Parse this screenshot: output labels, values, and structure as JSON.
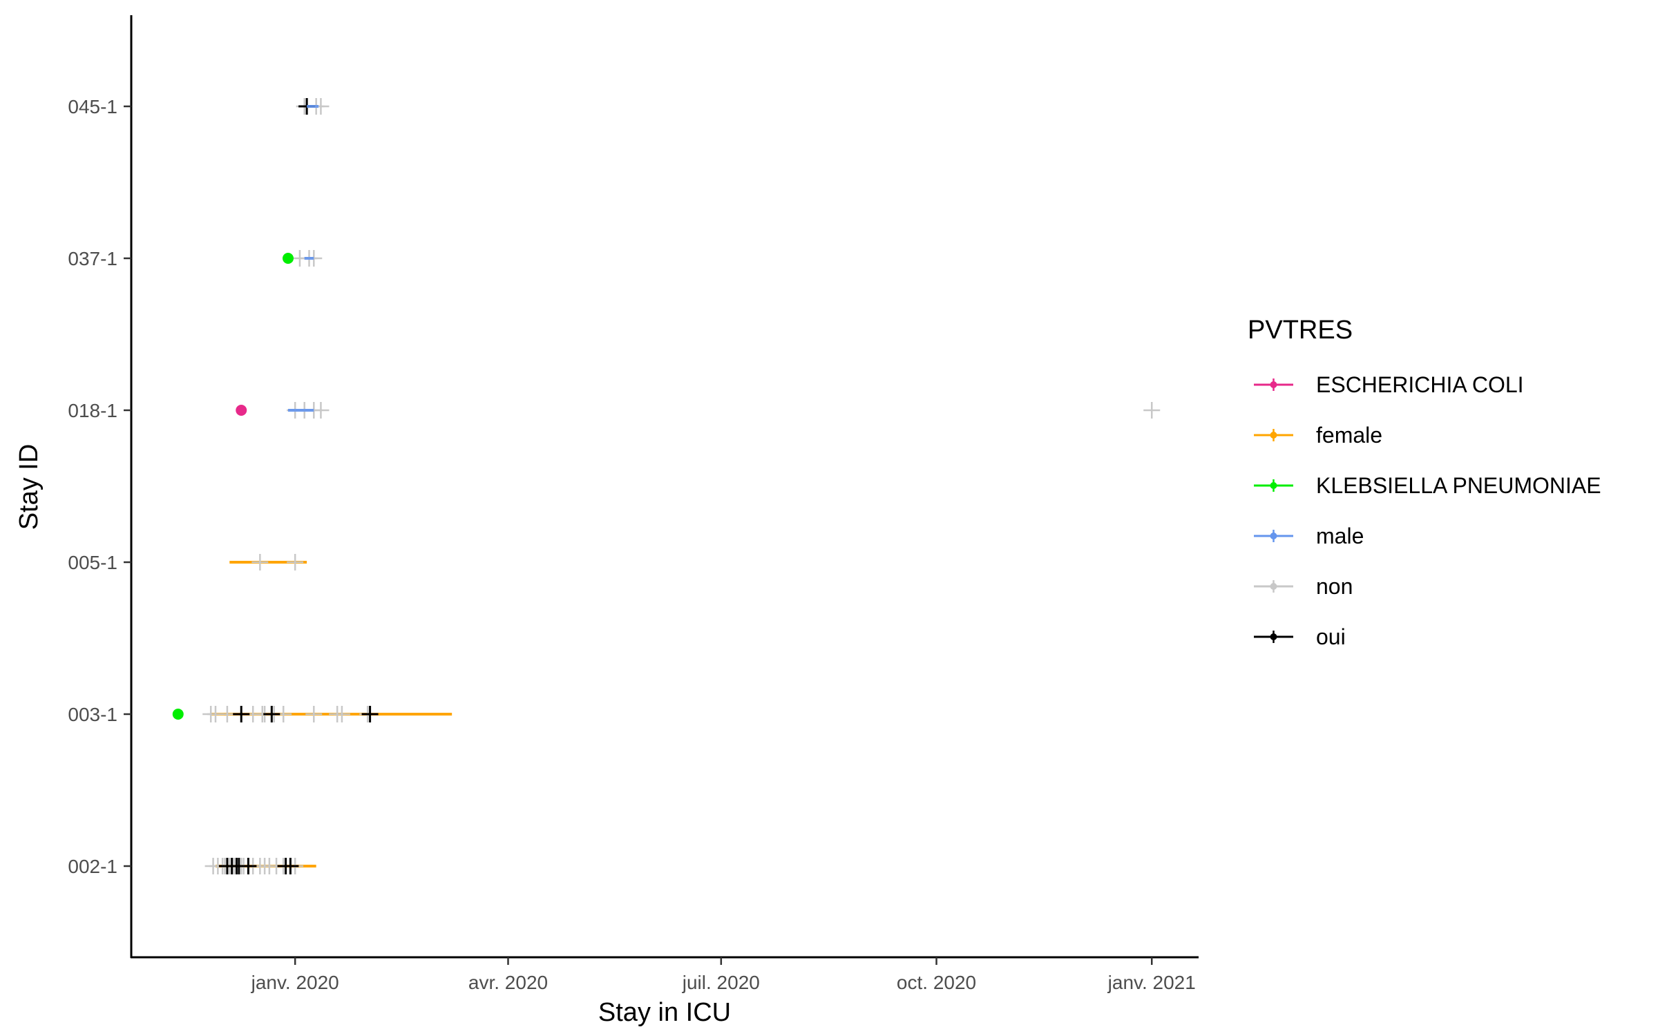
{
  "chart_data": {
    "type": "scatter",
    "xlabel": "Stay in ICU",
    "ylabel": "Stay ID",
    "categories": [
      "002-1",
      "003-1",
      "005-1",
      "018-1",
      "037-1",
      "045-1"
    ],
    "x_ticks": [
      {
        "date": "2020-01-01",
        "label": "janv. 2020"
      },
      {
        "date": "2020-04-01",
        "label": "avr. 2020"
      },
      {
        "date": "2020-07-01",
        "label": "juil. 2020"
      },
      {
        "date": "2020-10-01",
        "label": "oct. 2020"
      },
      {
        "date": "2021-01-01",
        "label": "janv. 2021"
      }
    ],
    "xlim": [
      "2019-10-23",
      "2021-01-21"
    ],
    "grid": false,
    "legend": {
      "title": "PVTRES",
      "position": "right",
      "entries": [
        {
          "label": "ESCHERICHIA COLI",
          "color": "#E7298A"
        },
        {
          "label": "female",
          "color": "#FFA500"
        },
        {
          "label": "KLEBSIELLA PNEUMONIAE",
          "color": "#00EE00"
        },
        {
          "label": "male",
          "color": "#6495ED"
        },
        {
          "label": "non",
          "color": "#C8C8C8"
        },
        {
          "label": "oui",
          "color": "#000000"
        }
      ]
    },
    "stays": [
      {
        "id": "002-1",
        "group": "female",
        "start": "2019-11-28",
        "end": "2020-01-10"
      },
      {
        "id": "003-1",
        "group": "female",
        "start": "2019-11-26",
        "end": "2020-03-08"
      },
      {
        "id": "005-1",
        "group": "female",
        "start": "2019-12-04",
        "end": "2020-01-06"
      },
      {
        "id": "018-1",
        "group": "male",
        "start": "2019-12-29",
        "end": "2020-01-09"
      },
      {
        "id": "037-1",
        "group": "male",
        "start": "2020-01-05",
        "end": "2020-01-09"
      },
      {
        "id": "045-1",
        "group": "male",
        "start": "2020-01-06",
        "end": "2020-01-11"
      }
    ],
    "points": [
      {
        "id": "003-1",
        "group": "KLEBSIELLA PNEUMONIAE",
        "date": "2019-11-12"
      },
      {
        "id": "018-1",
        "group": "ESCHERICHIA COLI",
        "date": "2019-12-09"
      },
      {
        "id": "037-1",
        "group": "KLEBSIELLA PNEUMONIAE",
        "date": "2019-12-29"
      }
    ],
    "samples": [
      {
        "id": "002-1",
        "group": "non",
        "dates": [
          "2019-11-27",
          "2019-11-29",
          "2019-12-01",
          "2019-12-02",
          "2019-12-03",
          "2019-12-04",
          "2019-12-05",
          "2019-12-06",
          "2019-12-07",
          "2019-12-09",
          "2019-12-10",
          "2019-12-12",
          "2019-12-14",
          "2019-12-17",
          "2019-12-19",
          "2019-12-21",
          "2019-12-24",
          "2019-12-27",
          "2020-01-01"
        ]
      },
      {
        "id": "002-1",
        "group": "oui",
        "dates": [
          "2019-12-03",
          "2019-12-05",
          "2019-12-07",
          "2019-12-08",
          "2019-12-12",
          "2019-12-28",
          "2019-12-30"
        ]
      },
      {
        "id": "003-1",
        "group": "non",
        "dates": [
          "2019-11-26",
          "2019-11-28",
          "2019-12-03",
          "2019-12-14",
          "2019-12-18",
          "2019-12-19",
          "2019-12-23",
          "2019-12-27",
          "2020-01-09",
          "2020-01-19",
          "2020-01-21",
          "2020-02-01"
        ]
      },
      {
        "id": "003-1",
        "group": "oui",
        "dates": [
          "2019-12-09",
          "2019-12-22",
          "2020-02-02"
        ]
      },
      {
        "id": "005-1",
        "group": "non",
        "dates": [
          "2019-12-17",
          "2020-01-01"
        ]
      },
      {
        "id": "018-1",
        "group": "non",
        "dates": [
          "2020-01-01",
          "2020-01-05",
          "2020-01-09",
          "2020-01-12",
          "2021-01-01"
        ]
      },
      {
        "id": "037-1",
        "group": "non",
        "dates": [
          "2020-01-03",
          "2020-01-07",
          "2020-01-09"
        ]
      },
      {
        "id": "045-1",
        "group": "non",
        "dates": [
          "2020-01-05",
          "2020-01-10",
          "2020-01-12"
        ]
      },
      {
        "id": "045-1",
        "group": "oui",
        "dates": [
          "2020-01-06"
        ]
      }
    ]
  }
}
